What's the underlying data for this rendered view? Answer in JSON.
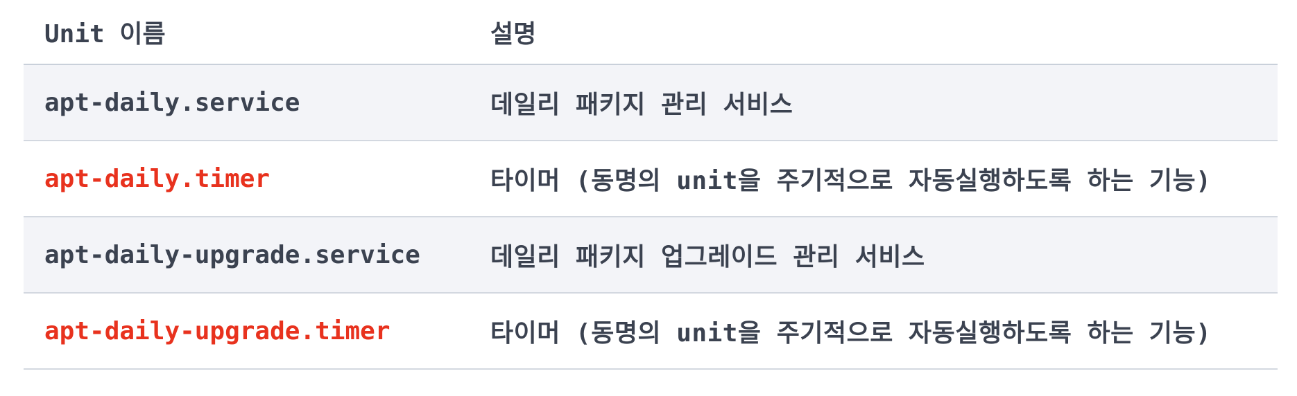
{
  "table": {
    "headers": [
      "Unit 이름",
      "설명"
    ],
    "rows": [
      {
        "unit": "apt-daily.service",
        "description": "데일리 패키지 관리 서비스",
        "unit_color": "#3b4250"
      },
      {
        "unit": "apt-daily.timer",
        "description": "타이머 (동명의 unit을 주기적으로 자동실행하도록 하는 기능)",
        "unit_color": "#e8321e"
      },
      {
        "unit": "apt-daily-upgrade.service",
        "description": "데일리 패키지 업그레이드 관리 서비스",
        "unit_color": "#3b4250"
      },
      {
        "unit": "apt-daily-upgrade.timer",
        "description": "타이머 (동명의 unit을 주기적으로 자동실행하도록 하는 기능)",
        "unit_color": "#e8321e"
      }
    ]
  }
}
